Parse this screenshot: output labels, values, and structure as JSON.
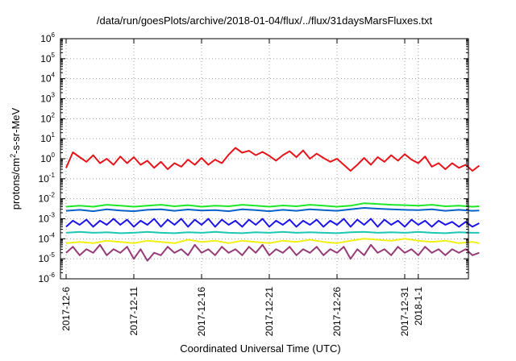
{
  "chart_data": {
    "type": "line",
    "title": "/data/run/goesPlots/archive/2018-01-04/flux/../flux/31daysMarsFluxes.txt",
    "xlabel": "Coordinated Universal Time (UTC)",
    "ylabel": {
      "base": "protons/cm",
      "sup": "2",
      "rest": "-s-sr-MeV"
    },
    "yscale": "log",
    "ylim_exponents": [
      -6,
      6
    ],
    "y_tick_labels": [
      {
        "base": "10",
        "exp": "-6"
      },
      {
        "base": "10",
        "exp": "-5"
      },
      {
        "base": "10",
        "exp": "-4"
      },
      {
        "base": "10",
        "exp": "-3"
      },
      {
        "base": "10",
        "exp": "-2"
      },
      {
        "base": "10",
        "exp": "-1"
      },
      {
        "base": "10",
        "exp": "0"
      },
      {
        "base": "10",
        "exp": "1"
      },
      {
        "base": "10",
        "exp": "2"
      },
      {
        "base": "10",
        "exp": "3"
      },
      {
        "base": "10",
        "exp": "4"
      },
      {
        "base": "10",
        "exp": "5"
      },
      {
        "base": "10",
        "exp": "6"
      }
    ],
    "x_range_days": [
      0,
      31
    ],
    "x_tick_labels": [
      "2017-12-6",
      "2017-12-11",
      "2017-12-16",
      "2017-12-21",
      "2017-12-26",
      "2017-12-31",
      "2018-1-1"
    ],
    "x_tick_days": [
      0,
      5,
      10,
      15,
      20,
      25,
      26
    ],
    "grid": true,
    "series": [
      {
        "name": "red",
        "color": "#e8141c",
        "x": [
          0,
          0.5,
          1,
          1.5,
          2,
          2.5,
          3,
          3.5,
          4,
          4.5,
          5,
          5.5,
          6,
          6.5,
          7,
          7.5,
          8,
          8.5,
          9,
          9.5,
          10,
          10.5,
          11,
          11.5,
          12,
          12.5,
          13,
          13.5,
          14,
          14.5,
          15,
          15.5,
          16,
          16.5,
          17,
          17.5,
          18,
          18.5,
          19,
          19.5,
          20,
          20.5,
          21,
          21.5,
          22,
          22.5,
          23,
          23.5,
          24,
          24.5,
          25,
          25.5,
          26,
          26.5,
          27,
          27.5,
          28,
          28.5,
          29,
          29.5,
          30,
          30.5
        ],
        "values": [
          0.35,
          2.1,
          1.2,
          0.7,
          1.5,
          0.6,
          1.0,
          0.5,
          1.3,
          0.6,
          1.2,
          0.5,
          0.8,
          0.35,
          0.7,
          0.3,
          0.6,
          0.4,
          0.9,
          0.5,
          1.1,
          0.5,
          0.9,
          0.6,
          1.6,
          3.5,
          2.0,
          2.5,
          1.5,
          2.2,
          1.4,
          0.8,
          1.5,
          2.4,
          1.2,
          2.6,
          1.0,
          1.8,
          1.1,
          0.7,
          1.0,
          0.5,
          0.25,
          0.5,
          1.1,
          0.5,
          1.2,
          0.7,
          1.5,
          0.8,
          1.7,
          0.9,
          0.6,
          1.3,
          0.4,
          0.6,
          0.3,
          0.6,
          0.35,
          0.5,
          0.25,
          0.45
        ]
      },
      {
        "name": "green",
        "color": "#1ce828",
        "x": [
          0,
          1,
          2,
          3,
          4,
          5,
          6,
          7,
          8,
          9,
          10,
          11,
          12,
          13,
          14,
          15,
          16,
          17,
          18,
          19,
          20,
          21,
          22,
          23,
          24,
          25,
          26,
          27,
          28,
          29,
          30,
          30.5
        ],
        "values": [
          0.004,
          0.0045,
          0.004,
          0.005,
          0.0045,
          0.004,
          0.0045,
          0.005,
          0.0042,
          0.0048,
          0.004,
          0.0045,
          0.0042,
          0.005,
          0.0045,
          0.004,
          0.0046,
          0.0042,
          0.005,
          0.0045,
          0.004,
          0.0045,
          0.006,
          0.0055,
          0.005,
          0.0048,
          0.0045,
          0.005,
          0.0042,
          0.0045,
          0.004,
          0.0042
        ]
      },
      {
        "name": "darkblue",
        "color": "#0a62c8",
        "x": [
          0,
          1,
          2,
          3,
          4,
          5,
          6,
          7,
          8,
          9,
          10,
          11,
          12,
          13,
          14,
          15,
          16,
          17,
          18,
          19,
          20,
          21,
          22,
          23,
          24,
          25,
          26,
          27,
          28,
          29,
          30,
          30.5
        ],
        "values": [
          0.0025,
          0.0028,
          0.0024,
          0.003,
          0.0026,
          0.0024,
          0.0028,
          0.003,
          0.0025,
          0.0029,
          0.0026,
          0.0027,
          0.0024,
          0.003,
          0.0027,
          0.0024,
          0.0028,
          0.0025,
          0.003,
          0.0027,
          0.0025,
          0.003,
          0.0035,
          0.0032,
          0.003,
          0.0028,
          0.0027,
          0.003,
          0.0025,
          0.0028,
          0.0025,
          0.0026
        ]
      },
      {
        "name": "blue",
        "color": "#1c14e8",
        "x": [
          0,
          0.5,
          1,
          1.5,
          2,
          2.5,
          3,
          3.5,
          4,
          4.5,
          5,
          5.5,
          6,
          6.5,
          7,
          7.5,
          8,
          8.5,
          9,
          9.5,
          10,
          10.5,
          11,
          11.5,
          12,
          12.5,
          13,
          13.5,
          14,
          14.5,
          15,
          15.5,
          16,
          16.5,
          17,
          17.5,
          18,
          18.5,
          19,
          19.5,
          20,
          20.5,
          21,
          21.5,
          22,
          22.5,
          23,
          23.5,
          24,
          24.5,
          25,
          25.5,
          26,
          26.5,
          27,
          27.5,
          28,
          28.5,
          29,
          29.5,
          30,
          30.5
        ],
        "values": [
          0.0004,
          0.0008,
          0.0005,
          0.0009,
          0.0004,
          0.0008,
          0.0005,
          0.001,
          0.0005,
          0.0009,
          0.0004,
          0.0008,
          0.0005,
          0.001,
          0.0004,
          0.0009,
          0.0005,
          0.001,
          0.0004,
          0.0009,
          0.0005,
          0.001,
          0.0004,
          0.0009,
          0.0005,
          0.0008,
          0.0004,
          0.0009,
          0.0005,
          0.001,
          0.0004,
          0.0008,
          0.0005,
          0.0009,
          0.0004,
          0.0008,
          0.0005,
          0.0009,
          0.0004,
          0.0008,
          0.0005,
          0.001,
          0.0004,
          0.0009,
          0.0005,
          0.001,
          0.0004,
          0.0009,
          0.0005,
          0.0008,
          0.0004,
          0.0009,
          0.0005,
          0.0008,
          0.0004,
          0.0008,
          0.0005,
          0.0007,
          0.0004,
          0.0007,
          0.0004,
          0.0006
        ]
      },
      {
        "name": "cyan",
        "color": "#1cc8b4",
        "x": [
          0,
          1,
          2,
          3,
          4,
          5,
          6,
          7,
          8,
          9,
          10,
          11,
          12,
          13,
          14,
          15,
          16,
          17,
          18,
          19,
          20,
          21,
          22,
          23,
          24,
          25,
          26,
          27,
          28,
          29,
          30,
          30.5
        ],
        "values": [
          0.0002,
          0.00022,
          0.0002,
          0.00021,
          0.00019,
          0.0002,
          0.00022,
          0.0002,
          0.00019,
          0.00021,
          0.0002,
          0.00022,
          0.0002,
          0.00019,
          0.00021,
          0.0002,
          0.00022,
          0.0002,
          0.00021,
          0.0002,
          0.00019,
          0.00021,
          0.00022,
          0.0002,
          0.00021,
          0.0002,
          0.00022,
          0.0002,
          0.00019,
          0.00021,
          0.0002,
          0.0002
        ]
      },
      {
        "name": "yellow",
        "color": "#f0f014",
        "x": [
          0,
          1,
          2,
          3,
          4,
          5,
          6,
          7,
          8,
          9,
          10,
          11,
          12,
          13,
          14,
          15,
          16,
          17,
          18,
          19,
          20,
          21,
          22,
          23,
          24,
          25,
          26,
          27,
          28,
          29,
          30,
          30.5
        ],
        "values": [
          6e-05,
          7e-05,
          6e-05,
          8e-05,
          7e-05,
          6e-05,
          8e-05,
          7e-05,
          6e-05,
          9e-05,
          7e-05,
          8e-05,
          6e-05,
          8e-05,
          7e-05,
          6e-05,
          8e-05,
          7e-05,
          9e-05,
          7e-05,
          6e-05,
          8e-05,
          0.0001,
          9e-05,
          8e-05,
          0.0001,
          8e-05,
          7e-05,
          8e-05,
          6e-05,
          7e-05,
          6e-05
        ]
      },
      {
        "name": "purple",
        "color": "#963c78",
        "x": [
          0,
          0.5,
          1,
          1.5,
          2,
          2.5,
          3,
          3.5,
          4,
          4.5,
          5,
          5.5,
          6,
          6.5,
          7,
          7.5,
          8,
          8.5,
          9,
          9.5,
          10,
          10.5,
          11,
          11.5,
          12,
          12.5,
          13,
          13.5,
          14,
          14.5,
          15,
          15.5,
          16,
          16.5,
          17,
          17.5,
          18,
          18.5,
          19,
          19.5,
          20,
          20.5,
          21,
          21.5,
          22,
          22.5,
          23,
          23.5,
          24,
          24.5,
          25,
          25.5,
          26,
          26.5,
          27,
          27.5,
          28,
          28.5,
          29,
          29.5,
          30,
          30.5
        ],
        "values": [
          2e-05,
          4e-05,
          1.5e-05,
          3e-05,
          2e-05,
          5e-05,
          1.5e-05,
          3e-05,
          2e-05,
          4e-05,
          1e-05,
          3e-05,
          8e-06,
          2e-05,
          1.5e-05,
          4e-05,
          2e-05,
          3e-05,
          1.5e-05,
          5e-05,
          2e-05,
          3e-05,
          1.5e-05,
          4e-05,
          2e-05,
          3e-05,
          1.5e-05,
          4e-05,
          2e-05,
          5e-05,
          1.5e-05,
          3e-05,
          2e-05,
          4e-05,
          1.5e-05,
          3e-05,
          2e-05,
          4e-05,
          1.5e-05,
          3e-05,
          2e-05,
          4e-05,
          1e-05,
          3e-05,
          1.5e-05,
          5e-05,
          2e-05,
          3e-05,
          1.5e-05,
          4e-05,
          2e-05,
          3e-05,
          1.5e-05,
          4e-05,
          2e-05,
          3e-05,
          1.5e-05,
          3e-05,
          2e-05,
          3e-05,
          1.5e-05,
          2e-05
        ]
      }
    ]
  }
}
